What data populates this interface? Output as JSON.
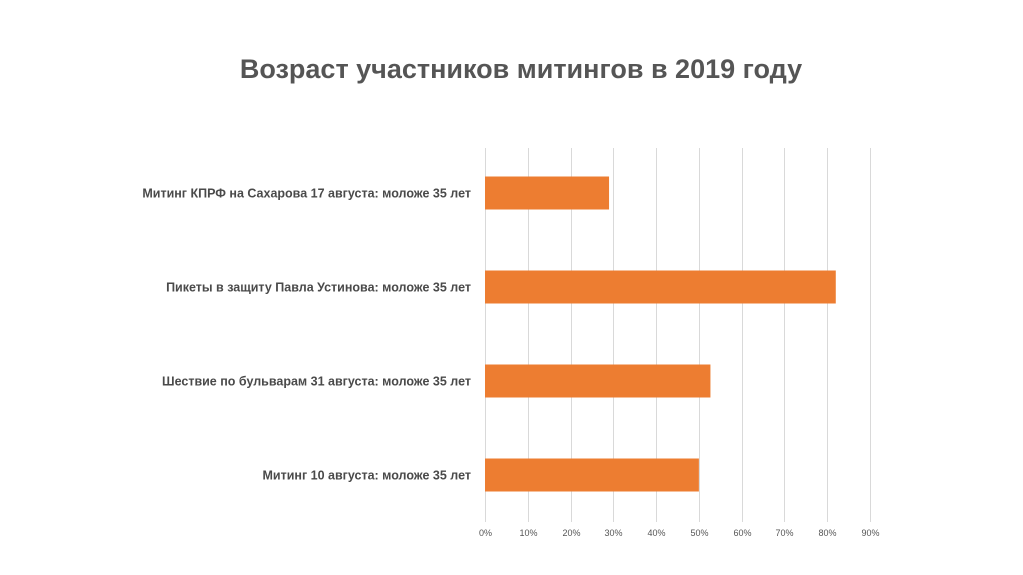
{
  "chart_data": {
    "type": "bar",
    "orientation": "horizontal",
    "title": "Возраст участников митингов в 2019 году",
    "xlabel": "",
    "ylabel": "",
    "categories": [
      "Митинг КПРФ на Сахарова 17 августа: моложе 35 лет",
      "Пикеты в защиту Павла Устинова: моложе 35 лет",
      "Шествие по бульварам 31 августа: моложе 35 лет",
      "Митинг 10 августа: моложе 35 лет"
    ],
    "values": [
      0.29,
      0.82,
      0.527,
      0.5
    ],
    "xlim": [
      0,
      0.9
    ],
    "xticks": [
      "0%",
      "10%",
      "20%",
      "30%",
      "40%",
      "50%",
      "60%",
      "70%",
      "80%",
      "90%"
    ],
    "grid": true,
    "legend": "none",
    "bar_color": "#ED7D31",
    "grid_color": "#D9D9D9",
    "title_color": "#555555"
  }
}
